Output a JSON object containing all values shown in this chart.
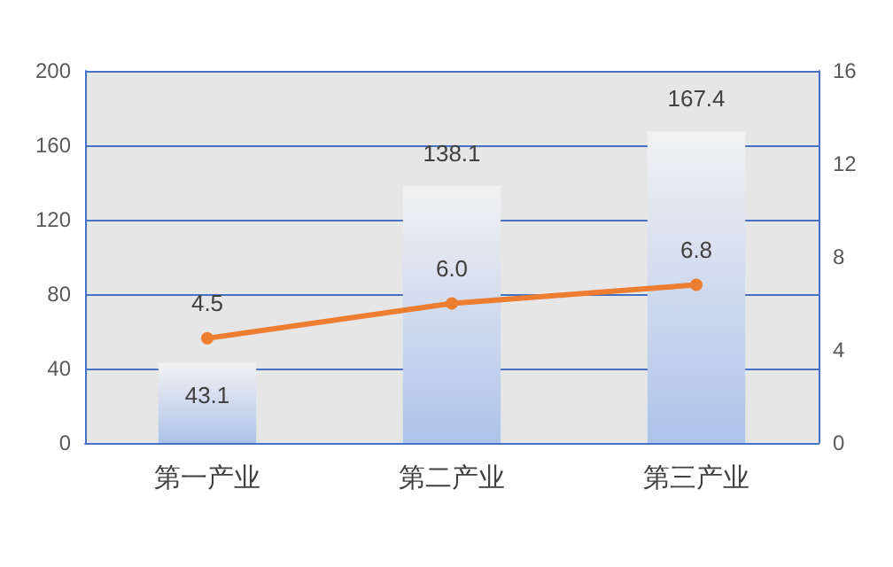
{
  "chart_data": {
    "type": "bar",
    "categories": [
      "第一产业",
      "第二产业",
      "第三产业"
    ],
    "series": [
      {
        "color": "#aec3ea",
        "values": [
          43.1,
          138.1,
          167.4
        ],
        "value_labels": [
          "43.1",
          "138.1",
          "167.4"
        ]
      },
      {
        "type": "line",
        "color": "#ed7d31",
        "axis": "y2",
        "values": [
          4.5,
          6.0,
          6.8
        ],
        "value_labels": [
          "4.5",
          "6.0",
          "6.8"
        ]
      }
    ],
    "ylim": [
      0,
      200
    ],
    "yticks": [
      0,
      40,
      80,
      120,
      160,
      200
    ],
    "y2lim": [
      0,
      16
    ],
    "y2ticks": [
      0,
      4,
      8,
      12,
      16
    ],
    "grid": "y",
    "marker": "circle",
    "line_style": "solid"
  }
}
